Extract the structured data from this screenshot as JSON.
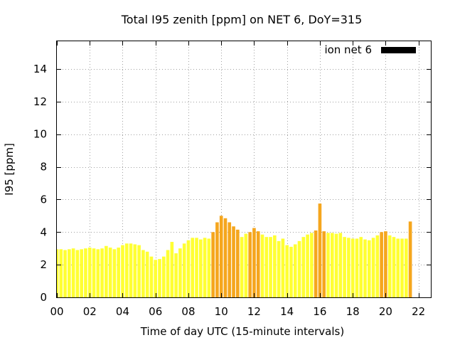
{
  "chart_data": {
    "type": "bar",
    "title": "Total I95 zenith [ppm] on NET 6, DoY=315",
    "xlabel": "Time of day UTC (15-minute intervals)",
    "ylabel": "I95 [ppm]",
    "xlim": [
      0,
      22.75
    ],
    "ylim": [
      0,
      15.7
    ],
    "xticks": [
      {
        "v": 0,
        "label": "00"
      },
      {
        "v": 2,
        "label": "02"
      },
      {
        "v": 4,
        "label": "04"
      },
      {
        "v": 6,
        "label": "06"
      },
      {
        "v": 8,
        "label": "08"
      },
      {
        "v": 10,
        "label": "10"
      },
      {
        "v": 12,
        "label": "12"
      },
      {
        "v": 14,
        "label": "14"
      },
      {
        "v": 16,
        "label": "16"
      },
      {
        "v": 18,
        "label": "18"
      },
      {
        "v": 20,
        "label": "20"
      },
      {
        "v": 22,
        "label": "22"
      }
    ],
    "yticks": [
      {
        "v": 0,
        "label": "0"
      },
      {
        "v": 2,
        "label": "2"
      },
      {
        "v": 4,
        "label": "4"
      },
      {
        "v": 6,
        "label": "6"
      },
      {
        "v": 8,
        "label": "8"
      },
      {
        "v": 10,
        "label": "10"
      },
      {
        "v": 12,
        "label": "12"
      },
      {
        "v": 14,
        "label": "14"
      }
    ],
    "grid": true,
    "legend": {
      "label": "ion net 6",
      "color": "#000000",
      "placement": "top-right"
    },
    "bar_interval_hours": 0.25,
    "colors": {
      "normal": "#ffff33",
      "elevated": "#f5a61d",
      "threshold": 4.0
    },
    "values": [
      2.95,
      2.95,
      2.9,
      2.95,
      3.0,
      2.9,
      2.95,
      3.0,
      3.05,
      3.0,
      2.95,
      3.0,
      3.15,
      3.05,
      2.95,
      3.05,
      3.2,
      3.3,
      3.3,
      3.25,
      3.2,
      2.9,
      2.8,
      2.5,
      2.3,
      2.35,
      2.5,
      2.9,
      3.4,
      2.7,
      3.0,
      3.3,
      3.5,
      3.65,
      3.65,
      3.55,
      3.65,
      3.6,
      4.0,
      4.6,
      5.0,
      4.85,
      4.6,
      4.35,
      4.15,
      3.7,
      3.9,
      4.0,
      4.25,
      4.05,
      3.85,
      3.7,
      3.7,
      3.8,
      3.45,
      3.6,
      3.2,
      3.1,
      3.25,
      3.45,
      3.7,
      3.85,
      3.95,
      4.1,
      5.75,
      4.05,
      3.95,
      3.95,
      3.9,
      3.95,
      3.7,
      3.65,
      3.6,
      3.6,
      3.7,
      3.55,
      3.5,
      3.65,
      3.8,
      4.0,
      4.05,
      3.8,
      3.7,
      3.6,
      3.6,
      3.6,
      4.65
    ]
  }
}
